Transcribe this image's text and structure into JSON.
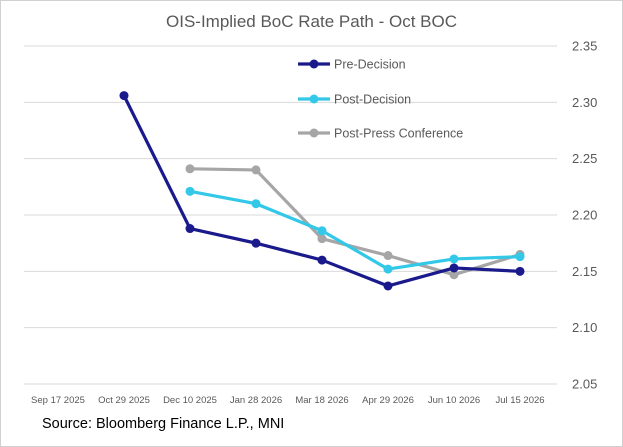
{
  "chart_data": {
    "type": "line",
    "title": "OIS-Implied BoC Rate Path - Oct BOC",
    "categories": [
      "Sep 17 2025",
      "Oct 29 2025",
      "Dec 10 2025",
      "Jan 28 2026",
      "Mar 18 2026",
      "Apr 29 2026",
      "Jun 10 2026",
      "Jul 15 2026"
    ],
    "y_ticks": [
      "2.35",
      "2.30",
      "2.25",
      "2.20",
      "2.15",
      "2.10",
      "2.05"
    ],
    "ylim": [
      2.05,
      2.35
    ],
    "y_axis_side": "right",
    "grid": true,
    "legend_position": "top-right",
    "series": [
      {
        "name": "Pre-Decision",
        "color": "#1a1a8c",
        "values": [
          null,
          2.306,
          2.188,
          2.175,
          2.16,
          2.137,
          2.153,
          2.15
        ]
      },
      {
        "name": "Post-Decision",
        "color": "#33c8e8",
        "values": [
          null,
          null,
          2.221,
          2.21,
          2.186,
          2.152,
          2.161,
          2.163
        ]
      },
      {
        "name": "Post-Press Conference",
        "color": "#a6a6a6",
        "values": [
          null,
          null,
          2.241,
          2.24,
          2.179,
          2.164,
          2.147,
          2.165
        ]
      }
    ]
  },
  "source": "Source: Bloomberg Finance L.P., MNI"
}
